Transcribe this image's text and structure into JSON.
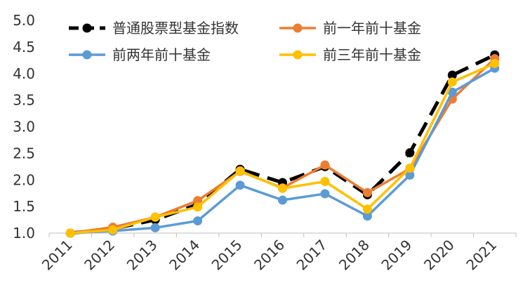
{
  "chart_data": {
    "type": "line",
    "categories": [
      "2011",
      "2012",
      "2013",
      "2014",
      "2015",
      "2016",
      "2017",
      "2018",
      "2019",
      "2020",
      "2021"
    ],
    "ylim": [
      1.0,
      5.0
    ],
    "yticks": [
      "1.0",
      "1.5",
      "2.0",
      "2.5",
      "3.0",
      "3.5",
      "4.0",
      "4.5",
      "5.0"
    ],
    "ytick_values": [
      1.0,
      1.5,
      2.0,
      2.5,
      3.0,
      3.5,
      4.0,
      4.5,
      5.0
    ],
    "grid": false,
    "legend_position": "top",
    "series": [
      {
        "name": "普通股票型基金指数",
        "color": "#000000",
        "dash": true,
        "values": [
          1.0,
          1.08,
          1.25,
          1.54,
          2.2,
          1.95,
          2.25,
          1.72,
          2.51,
          3.97,
          4.35
        ]
      },
      {
        "name": "前一年前十基金",
        "color": "#ED7D31",
        "dash": false,
        "values": [
          1.0,
          1.11,
          1.3,
          1.61,
          2.16,
          1.85,
          2.28,
          1.76,
          2.21,
          3.52,
          4.28
        ]
      },
      {
        "name": "前两年前十基金",
        "color": "#5B9BD5",
        "dash": false,
        "values": [
          1.0,
          1.04,
          1.1,
          1.23,
          1.9,
          1.62,
          1.74,
          1.32,
          2.09,
          3.65,
          4.1
        ]
      },
      {
        "name": "前三年前十基金",
        "color": "#FFC000",
        "dash": false,
        "values": [
          1.0,
          1.06,
          1.3,
          1.49,
          2.17,
          1.84,
          1.97,
          1.45,
          2.22,
          3.84,
          4.19
        ]
      }
    ]
  }
}
